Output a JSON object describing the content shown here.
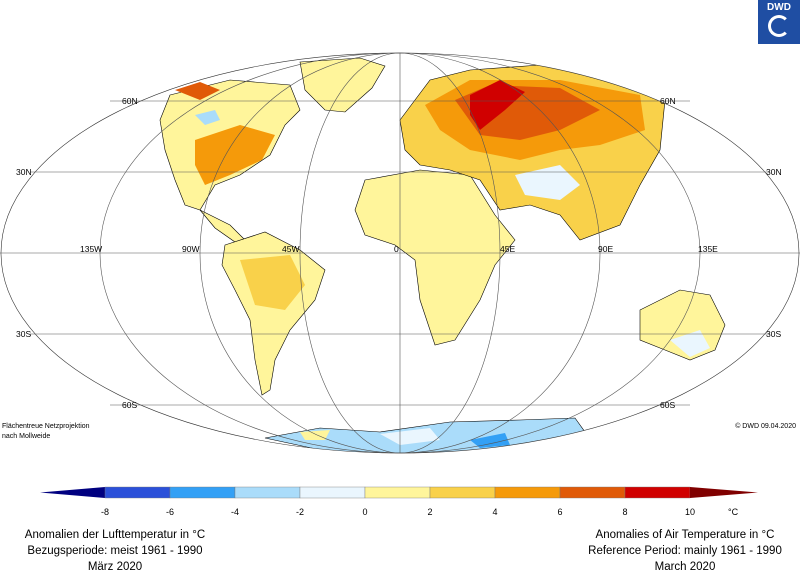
{
  "logo": {
    "text": "DWD"
  },
  "map": {
    "projection_note": [
      "Flächentreue Netzprojektion",
      "nach Mollweide"
    ],
    "copyright": "© DWD 09.04.2020",
    "lat_labels": [
      "60N",
      "30N",
      "30S",
      "60S"
    ],
    "lon_labels": [
      "135W",
      "90W",
      "45W",
      "0",
      "45E",
      "90E",
      "135E"
    ]
  },
  "legend": {
    "ticks": [
      "-8",
      "-6",
      "-4",
      "-2",
      "0",
      "2",
      "4",
      "6",
      "8",
      "10"
    ],
    "unit": "°C",
    "colors": [
      "#000080",
      "#2b50d9",
      "#33a0f5",
      "#aadcfa",
      "#eaf6fe",
      "#fff59b",
      "#f9d14a",
      "#f59a0a",
      "#e05a08",
      "#d00000",
      "#800000"
    ]
  },
  "caption_de": {
    "line1": "Anomalien der Lufttemperatur in °C",
    "line2": "Bezugsperiode: meist 1961 - 1990",
    "line3": "März 2020"
  },
  "caption_en": {
    "line1": "Anomalies of Air Temperature in °C",
    "line2": "Reference Period: mainly 1961 - 1990",
    "line3": "March 2020"
  }
}
